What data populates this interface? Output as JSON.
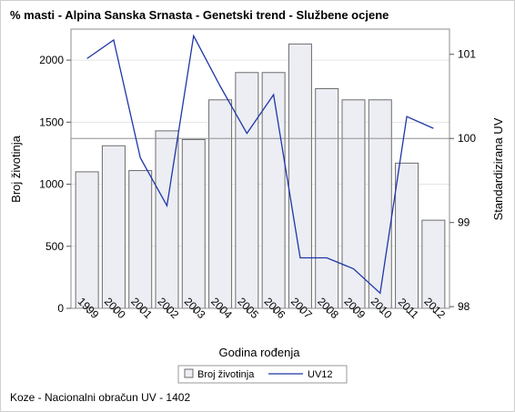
{
  "chart_data": {
    "type": "bar",
    "title": "% masti - Alpina Sanska Srnasta - Genetski trend - Službene ocjene",
    "xlabel": "Godina rođenja",
    "ylabel": "Broj životinja",
    "y2label": "Standardizirana UV",
    "categories": [
      "1999",
      "2000",
      "2001",
      "2002",
      "2003",
      "2004",
      "2005",
      "2006",
      "2007",
      "2008",
      "2009",
      "2010",
      "2011",
      "2012"
    ],
    "ylim": [
      0,
      2250
    ],
    "yticks": [
      0,
      500,
      1000,
      1500,
      2000
    ],
    "y2lim": [
      97.98,
      101.3
    ],
    "y2ticks": [
      98,
      99,
      100,
      101
    ],
    "reference_line": 100,
    "series": [
      {
        "name": "Broj životinja",
        "type": "bar",
        "axis": "left",
        "values": [
          1100,
          1310,
          1110,
          1430,
          1360,
          1680,
          1900,
          1900,
          2130,
          1770,
          1680,
          1680,
          1170,
          710
        ]
      },
      {
        "name": "UV12",
        "type": "line",
        "axis": "right",
        "values": [
          100.95,
          101.17,
          99.77,
          99.2,
          101.22,
          100.62,
          100.06,
          100.52,
          98.58,
          98.58,
          98.45,
          98.16,
          100.26,
          100.12
        ]
      }
    ],
    "legend_position": "bottom-center",
    "grid": "horizontal",
    "colors": {
      "bar_fill": "#eceef4",
      "bar_stroke": "#6d6d6d",
      "line": "#1f36a6",
      "reference": "#909090",
      "grid": "#e4e4e4"
    }
  },
  "footnote": "Koze - Nacionalni obračun UV - 1402"
}
